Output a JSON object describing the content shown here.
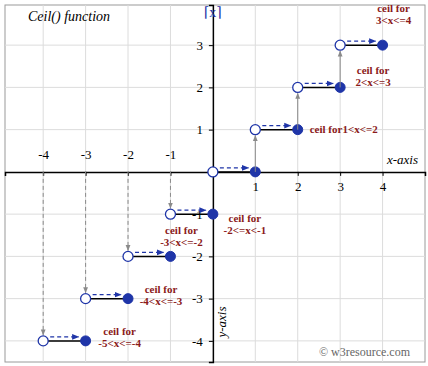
{
  "chart_data": {
    "type": "step",
    "title": "Ceil() function",
    "x_label": "x-axis",
    "y_label": "y-axis",
    "y_symbol": "⌈x⌉",
    "watermark": "© w3resource.com",
    "x": [
      -4,
      -3,
      -2,
      -1,
      0,
      1,
      2,
      3
    ],
    "x_end": [
      -3,
      -2,
      -1,
      0,
      1,
      2,
      3,
      4
    ],
    "values": [
      -4,
      -3,
      -2,
      -1,
      0,
      1,
      2,
      3
    ],
    "color": "#1f35a8",
    "xlim": [
      -4.9,
      5.0
    ],
    "ylim": [
      -4.5,
      3.95
    ],
    "xticks": [
      -4,
      -3,
      -2,
      -1,
      1,
      2,
      3,
      4
    ],
    "yticks": [
      -4,
      -3,
      -2,
      -1,
      1,
      2,
      3
    ],
    "grid": true,
    "annotations": [
      [
        "ceil for",
        "-5<x<=-4"
      ],
      [
        "ceil for",
        "-4<x<=-3"
      ],
      [
        "ceil for",
        "-3<x<=-2"
      ],
      [
        "ceil for",
        "-2<=x<-1"
      ],
      null,
      [
        "ceil for1<x<=2"
      ],
      [
        "ceil for",
        "2<x<=3"
      ],
      [
        "ceil for",
        "3<x<=4"
      ]
    ]
  }
}
